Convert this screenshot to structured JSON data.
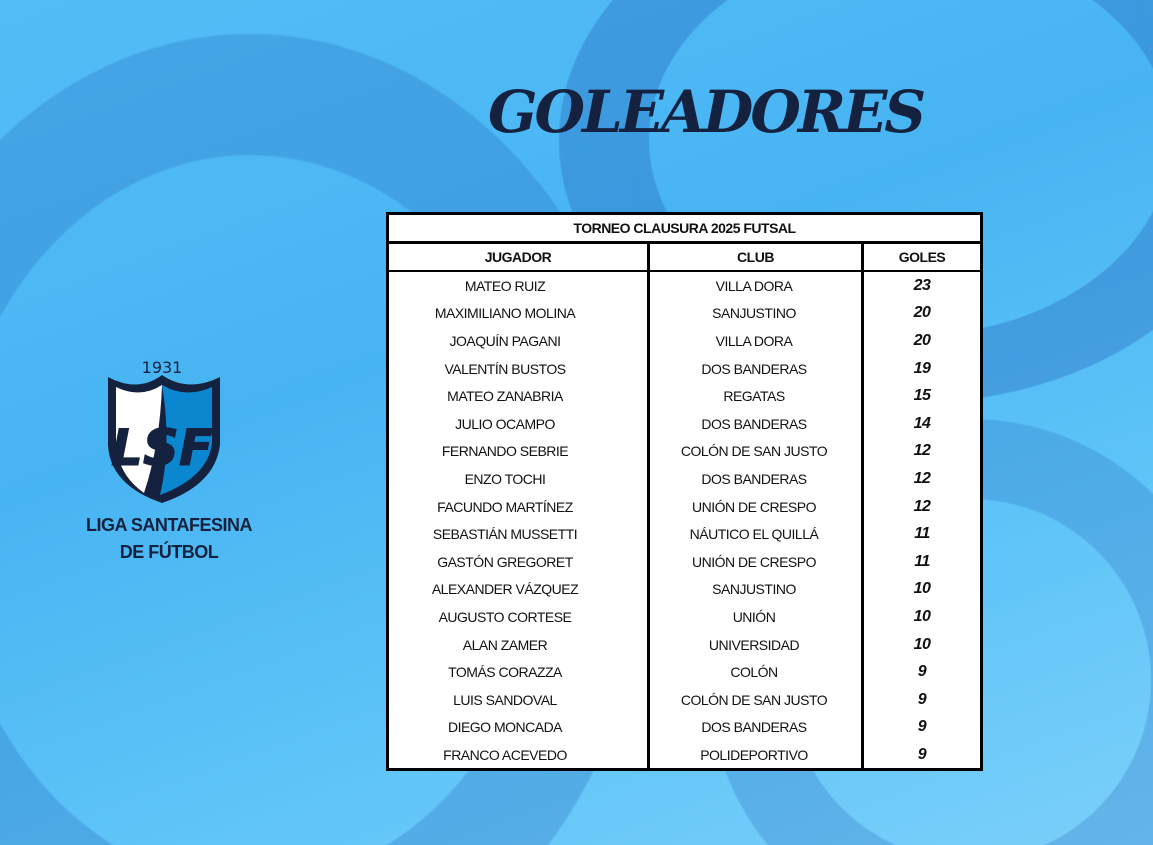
{
  "page": {
    "title": "GOLEADORES",
    "colors": {
      "background": "#4db8f5",
      "navy": "#15223f",
      "table_border": "#000000"
    }
  },
  "logo": {
    "year": "1931",
    "initials": "LSF",
    "name_line1": "LIGA SANTAFESINA",
    "name_line2": "DE FÚTBOL"
  },
  "table": {
    "caption": "TORNEO CLAUSURA 2025 FUTSAL",
    "headers": [
      "JUGADOR",
      "CLUB",
      "GOLES"
    ],
    "rows": [
      [
        "MATEO RUIZ",
        "VILLA DORA",
        "23"
      ],
      [
        "MAXIMILIANO MOLINA",
        "SANJUSTINO",
        "20"
      ],
      [
        "JOAQUÍN PAGANI",
        "VILLA DORA",
        "20"
      ],
      [
        "VALENTÍN BUSTOS",
        "DOS BANDERAS",
        "19"
      ],
      [
        "MATEO ZANABRIA",
        "REGATAS",
        "15"
      ],
      [
        "JULIO OCAMPO",
        "DOS BANDERAS",
        "14"
      ],
      [
        "FERNANDO SEBRIE",
        "COLÓN DE SAN JUSTO",
        "12"
      ],
      [
        "ENZO TOCHI",
        "DOS BANDERAS",
        "12"
      ],
      [
        "FACUNDO MARTÍNEZ",
        "UNIÓN DE CRESPO",
        "12"
      ],
      [
        "SEBASTIÁN MUSSETTI",
        "NÁUTICO EL QUILLÁ",
        "11"
      ],
      [
        "GASTÓN GREGORET",
        "UNIÓN DE CRESPO",
        "11"
      ],
      [
        "ALEXANDER VÁZQUEZ",
        "SANJUSTINO",
        "10"
      ],
      [
        "AUGUSTO CORTESE",
        "UNIÓN",
        "10"
      ],
      [
        "ALAN ZAMER",
        "UNIVERSIDAD",
        "10"
      ],
      [
        "TOMÁS CORAZZA",
        "COLÓN",
        "9"
      ],
      [
        "LUIS SANDOVAL",
        "COLÓN DE SAN JUSTO",
        "9"
      ],
      [
        "DIEGO MONCADA",
        "DOS BANDERAS",
        "9"
      ],
      [
        "FRANCO ACEVEDO",
        "POLIDEPORTIVO",
        "9"
      ]
    ]
  }
}
